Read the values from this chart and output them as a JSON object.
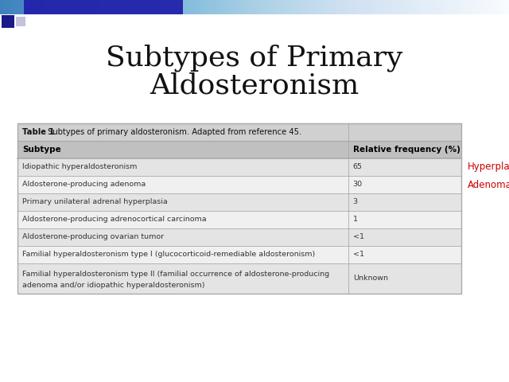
{
  "title_line1": "Subtypes of Primary",
  "title_line2": "Aldosteronism",
  "title_fontsize": 26,
  "table_caption_bold": "Table 1 ",
  "table_caption_rest": "Subtypes of primary aldosteronism. Adapted from reference 45.",
  "col_headers": [
    "Subtype",
    "Relative frequency (%)"
  ],
  "rows": [
    [
      "Idiopathic hyperaldosteronism",
      "65"
    ],
    [
      "Aldosterone-producing adenoma",
      "30"
    ],
    [
      "Primary unilateral adrenal hyperplasia",
      "3"
    ],
    [
      "Aldosterone-producing adrenocortical carcinoma",
      "1"
    ],
    [
      "Aldosterone-producing ovarian tumor",
      "<1"
    ],
    [
      "Familial hyperaldosteronism type I (glucocorticoid-remediable aldosteronism)",
      "<1"
    ],
    [
      "Familial hyperaldosteronism type II (familial occurrence of aldosterone-producing\nadenoma and/or idiopathic hyperaldosteronism)",
      "Unknown"
    ]
  ],
  "annotations": [
    {
      "row": 0,
      "text": "Hyperplasia",
      "color": "#cc0000"
    },
    {
      "row": 1,
      "text": "Adenoma",
      "color": "#cc0000"
    }
  ],
  "slide_bg": "#ffffff",
  "table_header_bg": "#c0c0c0",
  "table_caption_bg": "#d0d0d0",
  "table_row_bg_even": "#e4e4e4",
  "table_row_bg_odd": "#f0f0f0",
  "table_border_color": "#aaaaaa",
  "header_font_color": "#000000",
  "body_font_color": "#333333",
  "dec_bar_color": "#2222aa",
  "dec_bar_right_color": "#aaaacc",
  "dec_sq1_color": "#1a1a88",
  "dec_sq2_color": "#aaaacc"
}
